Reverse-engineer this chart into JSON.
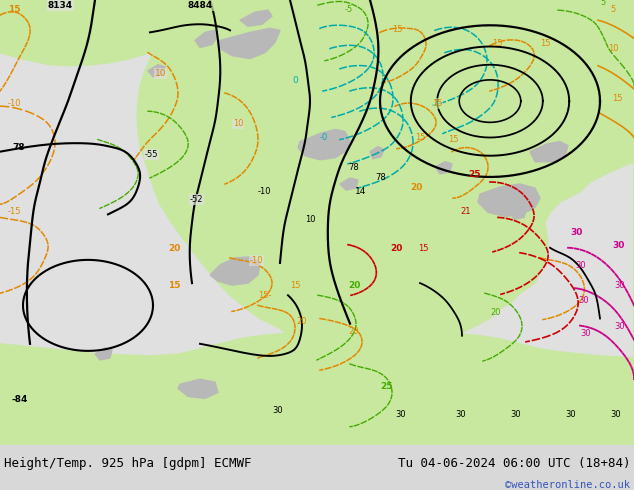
{
  "title_left": "Height/Temp. 925 hPa [gdpm] ECMWF",
  "title_right": "Tu 04-06-2024 06:00 UTC (18+84)",
  "watermark": "©weatheronline.co.uk",
  "land_green": "#c8e8a0",
  "ocean_gray": "#e0e0e0",
  "terrain_gray": "#b8b8b8",
  "bottom_bar_color": "#d8d8d8",
  "title_font_size": 9.0,
  "watermark_color": "#3355bb",
  "watermark_font_size": 7.5,
  "fig_width": 6.34,
  "fig_height": 4.9,
  "dpi": 100
}
